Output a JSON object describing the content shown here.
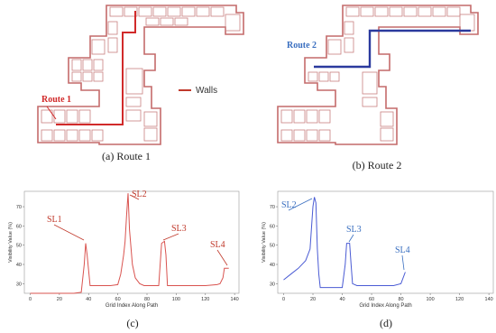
{
  "panels": [
    {
      "route_label": "Route 1",
      "legend": "Walls",
      "caption": "(a) Route 1"
    },
    {
      "route_label": "Route 2",
      "caption": "(b) Route 2"
    }
  ],
  "chart_data": [
    {
      "type": "line",
      "caption": "(c)",
      "x_label": "Grid Index Along Path",
      "y_label": "Visibility Value (%)",
      "color": "#d9534f",
      "annotation_color": "#c0392b",
      "x": [
        0,
        10,
        20,
        30,
        35,
        37,
        38,
        39,
        41,
        45,
        55,
        60,
        62,
        64,
        65,
        66,
        67,
        68,
        70,
        72,
        75,
        78,
        85,
        88,
        89,
        90,
        92,
        93,
        94,
        100,
        110,
        120,
        128,
        130,
        132,
        133,
        136
      ],
      "values": [
        25,
        25,
        25,
        25,
        25.5,
        40,
        51,
        45,
        29,
        29,
        29,
        29.5,
        35,
        45,
        52,
        65,
        77,
        58,
        40,
        33,
        30,
        29,
        29,
        29,
        40,
        51,
        52,
        45,
        29,
        29,
        29,
        29,
        29.5,
        30,
        33,
        38,
        38
      ],
      "annotations": [
        "SL1",
        "SL2",
        "SL3",
        "SL4"
      ],
      "xlim": [
        -4,
        143
      ],
      "ylim": [
        25,
        78
      ],
      "xticks": [
        0,
        20,
        40,
        60,
        80,
        100,
        120,
        140
      ],
      "yticks": [
        30,
        40,
        50,
        60,
        70
      ]
    },
    {
      "type": "line",
      "caption": "(d)",
      "x_label": "Grid Index Along Path",
      "y_label": "Visibility Value (%)",
      "color": "#4a5bd4",
      "annotation_color": "#3a6fc0",
      "x": [
        0,
        5,
        10,
        15,
        18,
        20,
        21,
        22,
        23,
        24,
        25,
        30,
        40,
        42,
        43,
        45,
        46,
        47,
        50,
        60,
        70,
        75,
        80,
        83
      ],
      "values": [
        32,
        35,
        38,
        42,
        48,
        70,
        75,
        72,
        48,
        35,
        28,
        28,
        28,
        40,
        51,
        51,
        40,
        30,
        29,
        29,
        29,
        29,
        30,
        36
      ],
      "annotations": [
        "SL2",
        "SL3",
        "SL4"
      ],
      "xlim": [
        -4,
        143
      ],
      "ylim": [
        25,
        78
      ],
      "xticks": [
        0,
        20,
        40,
        60,
        80,
        100,
        120,
        140
      ],
      "yticks": [
        30,
        40,
        50,
        60,
        70
      ]
    }
  ]
}
